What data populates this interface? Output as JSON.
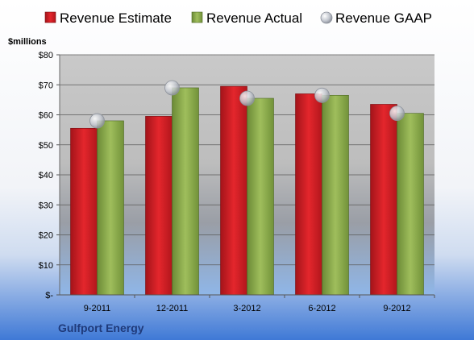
{
  "chart_data": {
    "type": "bar",
    "title": "",
    "ylabel": "$millions",
    "xlabel": "",
    "company": "Gulfport Energy",
    "categories": [
      "9-2011",
      "12-2011",
      "3-2012",
      "6-2012",
      "9-2012"
    ],
    "yticks": [
      "$-",
      "$10",
      "$20",
      "$30",
      "$40",
      "$50",
      "$60",
      "$70",
      "$80"
    ],
    "ylim": [
      0,
      80
    ],
    "grid": true,
    "legend_position": "top",
    "series": [
      {
        "name": "Revenue Estimate",
        "kind": "bar",
        "color": "#d01c22",
        "values": [
          55.5,
          59.5,
          69.5,
          67,
          63.5
        ]
      },
      {
        "name": "Revenue Actual",
        "kind": "bar",
        "color": "#8aaa4a",
        "values": [
          58,
          69,
          65.5,
          66.5,
          60.5
        ]
      },
      {
        "name": "Revenue GAAP",
        "kind": "marker",
        "color": "#c8ccd4",
        "values": [
          58,
          69,
          65.5,
          66.5,
          60.5
        ]
      }
    ]
  }
}
